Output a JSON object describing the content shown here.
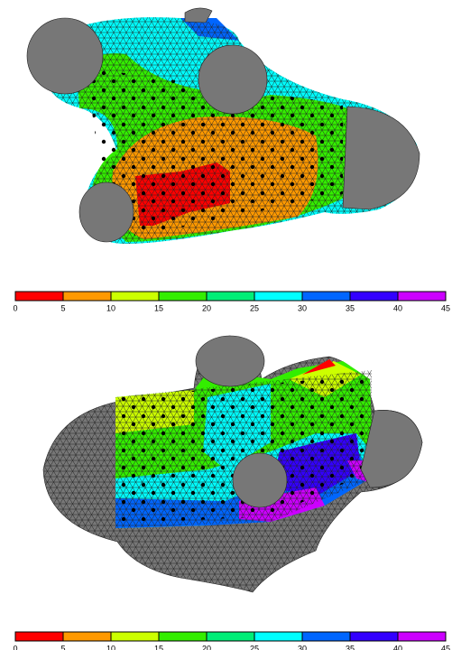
{
  "colorbars": [
    {
      "ticks": [
        0,
        5,
        10,
        15,
        20,
        25,
        30,
        35,
        40,
        45
      ],
      "colors": [
        "#ff0000",
        "#ff9900",
        "#ccff00",
        "#33ee00",
        "#00ee77",
        "#00ffff",
        "#0066ff",
        "#3300ff",
        "#cc00ff"
      ]
    },
    {
      "ticks": [
        0,
        5,
        10,
        15,
        20,
        25,
        30,
        35,
        40,
        45
      ],
      "colors": [
        "#ff0000",
        "#ff9900",
        "#ccff00",
        "#33ee00",
        "#00ee77",
        "#00ffff",
        "#0066ff",
        "#3300ff",
        "#cc00ff"
      ]
    }
  ]
}
